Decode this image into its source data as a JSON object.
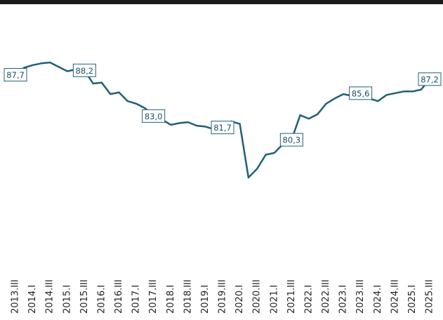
{
  "chart_data": {
    "type": "line",
    "categories": [
      "2013.III",
      null,
      "2014.I",
      null,
      "2014.III",
      null,
      "2015.I",
      null,
      "2015.III",
      null,
      "2016.I",
      null,
      "2016.III",
      null,
      "2017.I",
      null,
      "2017.III",
      null,
      "2018.I",
      null,
      "2018.III",
      null,
      "2019.I",
      null,
      "2019.III",
      null,
      "2020.I",
      null,
      "2020.III",
      null,
      "2021.I",
      null,
      "2021.III",
      null,
      "2022.I",
      null,
      "2022.III",
      null,
      "2023.I",
      null,
      "2023.III",
      null,
      "2024.I",
      null,
      "2024.III",
      null,
      "2025.I",
      null,
      "2025.III"
    ],
    "series": [
      {
        "color": "#1f5f7a",
        "values": [
          87.7,
          88.5,
          88.8,
          89.0,
          89.1,
          88.6,
          88.1,
          88.3,
          88.2,
          86.7,
          86.8,
          85.5,
          85.7,
          84.7,
          84.4,
          83.9,
          83.0,
          82.6,
          82.0,
          82.2,
          82.3,
          81.9,
          81.8,
          81.5,
          81.7,
          82.4,
          82.1,
          76.0,
          77.0,
          78.6,
          78.8,
          79.8,
          80.3,
          83.1,
          82.7,
          83.2,
          84.4,
          85.0,
          85.5,
          85.3,
          85.6,
          85.0,
          84.7,
          85.4,
          85.6,
          85.8,
          85.8,
          86.0,
          87.2
        ],
        "value_labels": [
          "87,7",
          null,
          null,
          null,
          null,
          null,
          null,
          null,
          "88,2",
          null,
          null,
          null,
          null,
          null,
          null,
          null,
          "83,0",
          null,
          null,
          null,
          null,
          null,
          null,
          null,
          "81,7",
          null,
          null,
          null,
          null,
          null,
          null,
          null,
          "80,3",
          null,
          null,
          null,
          null,
          null,
          null,
          null,
          "85,6",
          null,
          null,
          null,
          null,
          null,
          null,
          null,
          "87,2"
        ]
      }
    ]
  }
}
